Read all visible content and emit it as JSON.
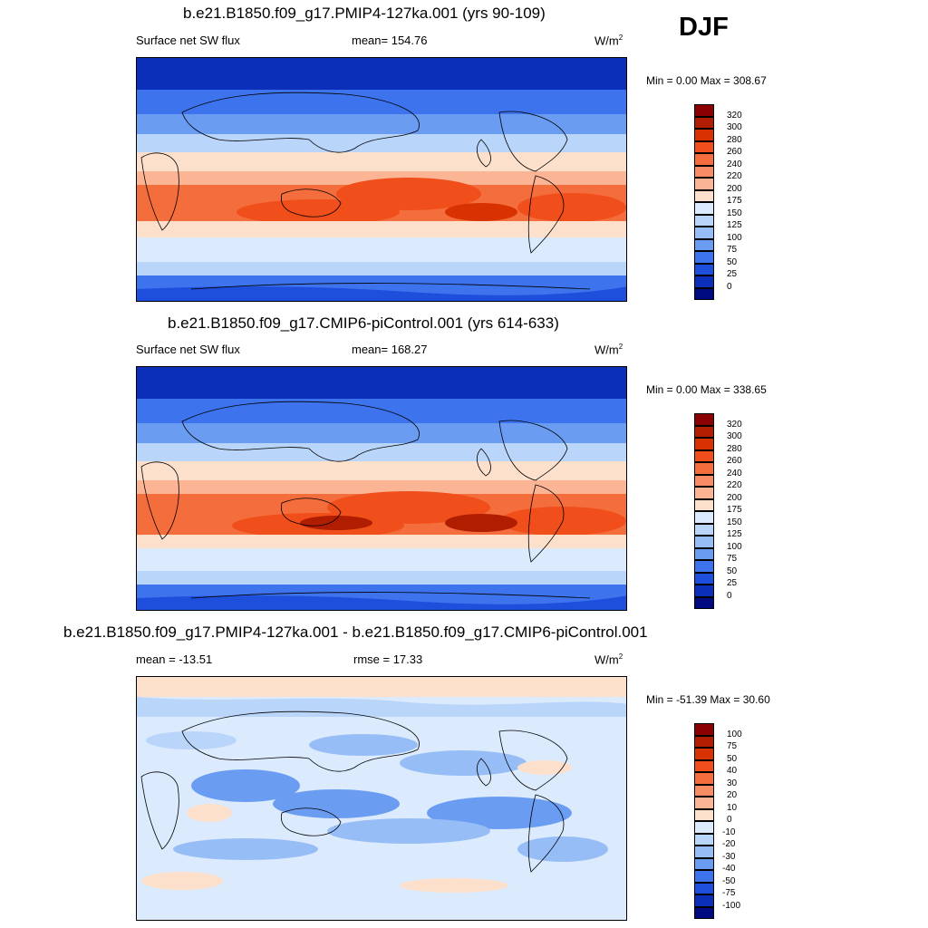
{
  "season": "DJF",
  "units_label": "W/m",
  "units_power": "2",
  "panels": [
    {
      "title": "b.e21.B1850.f09_g17.PMIP4-127ka.001 (yrs 90-109)",
      "left_label": "Surface net SW flux",
      "stat_label": "mean= 154.76",
      "minmax": "Min =   0.00 Max = 308.67",
      "colorbar": [
        "320",
        "300",
        "280",
        "260",
        "240",
        "220",
        "200",
        "175",
        "150",
        "125",
        "100",
        "75",
        "50",
        "25",
        "0"
      ]
    },
    {
      "title": "b.e21.B1850.f09_g17.CMIP6-piControl.001 (yrs 614-633)",
      "left_label": "Surface net SW flux",
      "stat_label": "mean= 168.27",
      "minmax": "Min =   0.00 Max = 338.65",
      "colorbar": [
        "320",
        "300",
        "280",
        "260",
        "240",
        "220",
        "200",
        "175",
        "150",
        "125",
        "100",
        "75",
        "50",
        "25",
        "0"
      ]
    },
    {
      "title": "b.e21.B1850.f09_g17.PMIP4-127ka.001 - b.e21.B1850.f09_g17.CMIP6-piControl.001",
      "left_label": "mean = -13.51",
      "stat_label": "rmse =  17.33",
      "minmax": "Min = -51.39 Max =  30.60",
      "colorbar": [
        "100",
        "75",
        "50",
        "40",
        "30",
        "20",
        "10",
        "0",
        "-10",
        "-20",
        "-30",
        "-40",
        "-50",
        "-75",
        "-100"
      ]
    }
  ],
  "colors": {
    "abs_scale": [
      "#8b0000",
      "#b01d00",
      "#d83200",
      "#f04e1a",
      "#f46d3c",
      "#f88c64",
      "#fbb494",
      "#fde0cc",
      "#dbeafc",
      "#bad5fa",
      "#97bdf6",
      "#6a9cf2",
      "#3d73ec",
      "#1e4fdc",
      "#0b2fb8",
      "#000a80"
    ],
    "diff_scale": [
      "#8b0000",
      "#b01d00",
      "#d83200",
      "#f04e1a",
      "#f46d3c",
      "#f88c64",
      "#fbb494",
      "#fde0cc",
      "#dbeafc",
      "#bad5fa",
      "#97bdf6",
      "#6a9cf2",
      "#3d73ec",
      "#1e4fdc",
      "#0b2fb8",
      "#000a80"
    ]
  }
}
